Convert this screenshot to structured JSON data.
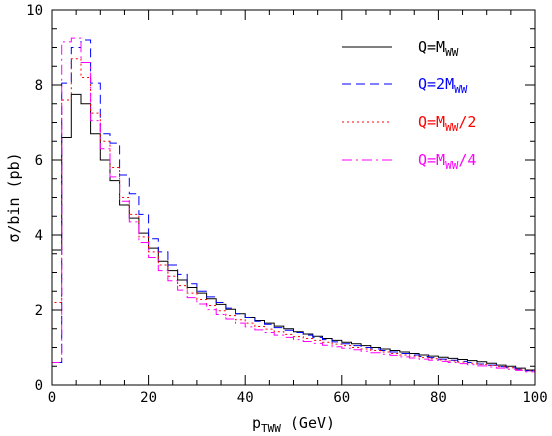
{
  "chart_data": {
    "type": "line",
    "style": "histogram-step",
    "title": "",
    "xlabel": "p",
    "xlabel_sub": "TWW",
    "xlabel_unit": " (GeV)",
    "ylabel": "σ/bin (pb)",
    "xlim": [
      0,
      100
    ],
    "ylim": [
      0,
      10
    ],
    "x_ticks": [
      0,
      20,
      40,
      60,
      80,
      100
    ],
    "y_ticks": [
      0,
      2,
      4,
      6,
      8,
      10
    ],
    "grid": false,
    "legend_position": "top-right",
    "bin_edges": [
      0,
      2,
      4,
      6,
      8,
      10,
      12,
      14,
      16,
      18,
      20,
      22,
      24,
      26,
      28,
      30,
      32,
      34,
      36,
      38,
      40,
      42,
      44,
      46,
      48,
      50,
      52,
      54,
      56,
      58,
      60,
      62,
      64,
      66,
      68,
      70,
      72,
      74,
      76,
      78,
      80,
      82,
      84,
      86,
      88,
      90,
      92,
      94,
      96,
      98,
      100
    ],
    "series": [
      {
        "name": "Q=M_WW",
        "legend_main": "Q=M",
        "legend_sub": "WW",
        "legend_tail": "",
        "color": "#000000",
        "dash": "",
        "values": [
          3.6,
          6.6,
          7.75,
          7.5,
          6.7,
          6.0,
          5.45,
          4.8,
          4.45,
          4.05,
          3.65,
          3.3,
          3.05,
          2.8,
          2.6,
          2.45,
          2.3,
          2.15,
          2.02,
          1.9,
          1.8,
          1.72,
          1.65,
          1.57,
          1.5,
          1.42,
          1.36,
          1.3,
          1.24,
          1.19,
          1.14,
          1.1,
          1.05,
          1.0,
          0.96,
          0.92,
          0.88,
          0.84,
          0.8,
          0.77,
          0.74,
          0.71,
          0.68,
          0.65,
          0.62,
          0.58,
          0.53,
          0.5,
          0.45,
          0.4
        ]
      },
      {
        "name": "Q=2M_WW",
        "legend_main": "Q=2M",
        "legend_sub": "WW",
        "legend_tail": "",
        "color": "#0000ff",
        "dash": "9,5",
        "values": [
          0.6,
          8.05,
          9.0,
          9.2,
          8.05,
          6.7,
          6.45,
          5.6,
          5.1,
          4.55,
          3.9,
          3.55,
          3.2,
          2.95,
          2.7,
          2.5,
          2.35,
          2.2,
          2.05,
          1.9,
          1.8,
          1.7,
          1.62,
          1.53,
          1.46,
          1.4,
          1.33,
          1.27,
          1.21,
          1.15,
          1.1,
          1.05,
          1.0,
          0.96,
          0.92,
          0.88,
          0.84,
          0.8,
          0.76,
          0.73,
          0.69,
          0.66,
          0.63,
          0.6,
          0.56,
          0.53,
          0.49,
          0.46,
          0.42,
          0.38
        ]
      },
      {
        "name": "Q=M_WW/2",
        "legend_main": "Q=M",
        "legend_sub": "WW",
        "legend_tail": "/2",
        "color": "#ff0000",
        "dash": "2,3",
        "values": [
          2.2,
          7.6,
          8.7,
          8.2,
          7.25,
          6.5,
          5.8,
          5.0,
          4.55,
          3.95,
          3.55,
          3.2,
          2.9,
          2.65,
          2.45,
          2.28,
          2.12,
          1.98,
          1.85,
          1.74,
          1.65,
          1.56,
          1.49,
          1.42,
          1.35,
          1.29,
          1.24,
          1.19,
          1.14,
          1.09,
          1.05,
          1.0,
          0.96,
          0.92,
          0.88,
          0.84,
          0.8,
          0.77,
          0.73,
          0.7,
          0.67,
          0.64,
          0.61,
          0.58,
          0.55,
          0.52,
          0.49,
          0.46,
          0.42,
          0.38
        ]
      },
      {
        "name": "Q=M_WW/4",
        "legend_main": "Q=M",
        "legend_sub": "WW",
        "legend_tail": "/4",
        "color": "#ff00ff",
        "dash": "10,4,2,4",
        "values": [
          0.6,
          9.15,
          9.25,
          8.6,
          7.05,
          6.3,
          5.55,
          4.9,
          4.35,
          3.8,
          3.4,
          3.05,
          2.78,
          2.53,
          2.33,
          2.16,
          2.01,
          1.88,
          1.76,
          1.65,
          1.55,
          1.47,
          1.4,
          1.33,
          1.27,
          1.21,
          1.16,
          1.11,
          1.06,
          1.02,
          0.98,
          0.94,
          0.9,
          0.86,
          0.82,
          0.79,
          0.75,
          0.72,
          0.69,
          0.66,
          0.63,
          0.6,
          0.57,
          0.54,
          0.51,
          0.48,
          0.45,
          0.42,
          0.39,
          0.35
        ]
      }
    ]
  }
}
